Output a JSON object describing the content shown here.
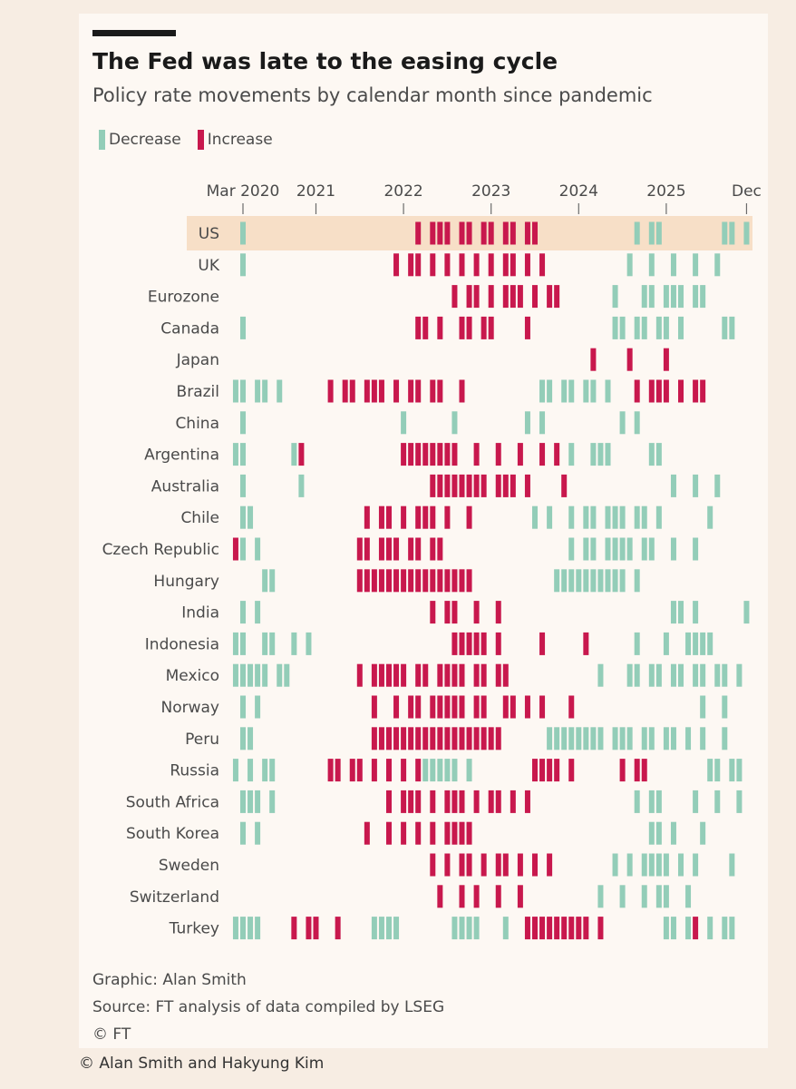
{
  "header": {
    "title": "The Fed was late to the easing cycle",
    "subtitle": "Policy rate movements by calendar month since pandemic"
  },
  "legend": {
    "decrease_label": "Decrease",
    "increase_label": "Increase"
  },
  "colors": {
    "decrease": "#93cdb8",
    "increase": "#c8184d",
    "highlight_band": "#f7dfc7",
    "axis": "#6b6b6b"
  },
  "chart_data": {
    "type": "timeline-heatmap",
    "title": "The Fed was late to the easing cycle",
    "subtitle": "Policy rate movements by calendar month since pandemic",
    "x_start": "2020-03",
    "x_end": "2025-12",
    "x_range_months": [
      0,
      69
    ],
    "x_ticks": [
      {
        "label": "Mar 2020",
        "month": 0
      },
      {
        "label": "2021",
        "month": 10
      },
      {
        "label": "2022",
        "month": 22
      },
      {
        "label": "2023",
        "month": 34
      },
      {
        "label": "2024",
        "month": 46
      },
      {
        "label": "2025",
        "month": 58
      },
      {
        "label": "Dec",
        "month": 69
      }
    ],
    "highlighted_row": "US",
    "series": [
      {
        "name": "US",
        "decrease": [
          0,
          54,
          56,
          57,
          66,
          67,
          69
        ],
        "increase": [
          24,
          26,
          27,
          28,
          30,
          31,
          33,
          34,
          36,
          37,
          39,
          40
        ]
      },
      {
        "name": "UK",
        "decrease": [
          0,
          53,
          56,
          59,
          62,
          65
        ],
        "increase": [
          21,
          23,
          24,
          26,
          28,
          30,
          32,
          34,
          36,
          37,
          39,
          41
        ]
      },
      {
        "name": "Eurozone",
        "decrease": [
          51,
          55,
          56,
          58,
          59,
          60,
          62,
          63
        ],
        "increase": [
          29,
          31,
          32,
          34,
          36,
          37,
          38,
          40,
          42,
          43
        ]
      },
      {
        "name": "Canada",
        "decrease": [
          0,
          51,
          52,
          54,
          55,
          57,
          58,
          60,
          66,
          67
        ],
        "increase": [
          24,
          25,
          27,
          30,
          31,
          33,
          34,
          39
        ]
      },
      {
        "name": "Japan",
        "decrease": [],
        "increase": [
          48,
          53,
          58
        ]
      },
      {
        "name": "Brazil",
        "decrease": [
          -1,
          0,
          2,
          3,
          5,
          41,
          42,
          44,
          45,
          47,
          48,
          50
        ],
        "increase": [
          12,
          14,
          15,
          17,
          18,
          19,
          21,
          23,
          24,
          26,
          27,
          30,
          54,
          56,
          57,
          58,
          60,
          62,
          63
        ]
      },
      {
        "name": "China",
        "decrease": [
          0,
          22,
          29,
          39,
          41,
          52,
          54
        ],
        "increase": []
      },
      {
        "name": "Argentina",
        "decrease": [
          -1,
          0,
          7,
          45,
          48,
          49,
          50,
          56,
          57
        ],
        "increase": [
          8,
          22,
          23,
          24,
          25,
          26,
          27,
          28,
          29,
          32,
          35,
          38,
          41,
          43
        ]
      },
      {
        "name": "Australia",
        "decrease": [
          0,
          8,
          59,
          62,
          65
        ],
        "increase": [
          26,
          27,
          28,
          29,
          30,
          31,
          32,
          33,
          35,
          36,
          37,
          39,
          44
        ]
      },
      {
        "name": "Chile",
        "decrease": [
          0,
          1,
          40,
          42,
          45,
          47,
          48,
          50,
          51,
          52,
          54,
          55,
          57,
          64
        ],
        "increase": [
          17,
          19,
          20,
          22,
          24,
          25,
          26,
          28,
          31
        ]
      },
      {
        "name": "Czech Republic",
        "decrease": [
          0,
          2,
          45,
          47,
          48,
          50,
          51,
          52,
          53,
          55,
          56,
          59,
          62
        ],
        "increase": [
          -1,
          16,
          17,
          19,
          20,
          21,
          23,
          24,
          26,
          27
        ]
      },
      {
        "name": "Hungary",
        "decrease": [
          3,
          4,
          43,
          44,
          45,
          46,
          47,
          48,
          49,
          50,
          51,
          52,
          54
        ],
        "increase": [
          16,
          17,
          18,
          19,
          20,
          21,
          22,
          23,
          24,
          25,
          26,
          27,
          28,
          29,
          30,
          31
        ]
      },
      {
        "name": "India",
        "decrease": [
          0,
          2,
          59,
          60,
          62,
          69
        ],
        "increase": [
          26,
          28,
          29,
          32,
          35
        ]
      },
      {
        "name": "Indonesia",
        "decrease": [
          -1,
          0,
          3,
          4,
          7,
          9,
          54,
          58,
          61,
          62,
          63,
          64
        ],
        "increase": [
          29,
          30,
          31,
          32,
          33,
          35,
          41,
          47
        ]
      },
      {
        "name": "Mexico",
        "decrease": [
          -1,
          0,
          1,
          2,
          3,
          5,
          6,
          49,
          53,
          54,
          56,
          57,
          59,
          60,
          62,
          63,
          65,
          66,
          68
        ],
        "increase": [
          16,
          18,
          19,
          20,
          21,
          22,
          24,
          25,
          27,
          28,
          29,
          30,
          32,
          33,
          35,
          36
        ]
      },
      {
        "name": "Norway",
        "decrease": [
          0,
          2,
          63,
          66
        ],
        "increase": [
          18,
          21,
          23,
          24,
          26,
          27,
          28,
          29,
          30,
          32,
          33,
          36,
          37,
          39,
          41,
          45
        ]
      },
      {
        "name": "Peru",
        "decrease": [
          0,
          1,
          42,
          43,
          44,
          45,
          46,
          47,
          48,
          49,
          51,
          52,
          53,
          55,
          56,
          58,
          59,
          61,
          63,
          66
        ],
        "increase": [
          18,
          19,
          20,
          21,
          22,
          23,
          24,
          25,
          26,
          27,
          28,
          29,
          30,
          31,
          32,
          33,
          34,
          35
        ]
      },
      {
        "name": "Russia",
        "decrease": [
          -1,
          1,
          3,
          4,
          25,
          26,
          27,
          28,
          29,
          31,
          64,
          65,
          67,
          68
        ],
        "increase": [
          12,
          13,
          15,
          16,
          18,
          20,
          22,
          24,
          40,
          41,
          42,
          43,
          45,
          52,
          54,
          55
        ]
      },
      {
        "name": "South Africa",
        "decrease": [
          0,
          1,
          2,
          4,
          54,
          56,
          57,
          62,
          65,
          68
        ],
        "increase": [
          20,
          22,
          23,
          24,
          26,
          28,
          29,
          30,
          32,
          34,
          35,
          37,
          39
        ]
      },
      {
        "name": "South Korea",
        "decrease": [
          0,
          2,
          56,
          57,
          59,
          63
        ],
        "increase": [
          17,
          20,
          22,
          24,
          26,
          28,
          29,
          30,
          31
        ]
      },
      {
        "name": "Sweden",
        "decrease": [
          51,
          53,
          55,
          56,
          57,
          58,
          60,
          62,
          67
        ],
        "increase": [
          26,
          28,
          30,
          31,
          33,
          35,
          36,
          38,
          40,
          42
        ]
      },
      {
        "name": "Switzerland",
        "decrease": [
          49,
          52,
          55,
          57,
          58,
          61
        ],
        "increase": [
          27,
          30,
          32,
          35,
          38
        ]
      },
      {
        "name": "Turkey",
        "decrease": [
          -1,
          0,
          1,
          2,
          18,
          19,
          20,
          21,
          29,
          30,
          31,
          32,
          36,
          58,
          59,
          61,
          64,
          66,
          67
        ],
        "increase": [
          7,
          9,
          10,
          13,
          39,
          40,
          41,
          42,
          43,
          44,
          45,
          46,
          47,
          49,
          62
        ]
      }
    ]
  },
  "footer": {
    "graphic": "Graphic: Alan Smith",
    "source": "Source: FT analysis of data compiled by LSEG",
    "copyright": "© FT"
  },
  "credit": "© Alan Smith and Hakyung Kim"
}
